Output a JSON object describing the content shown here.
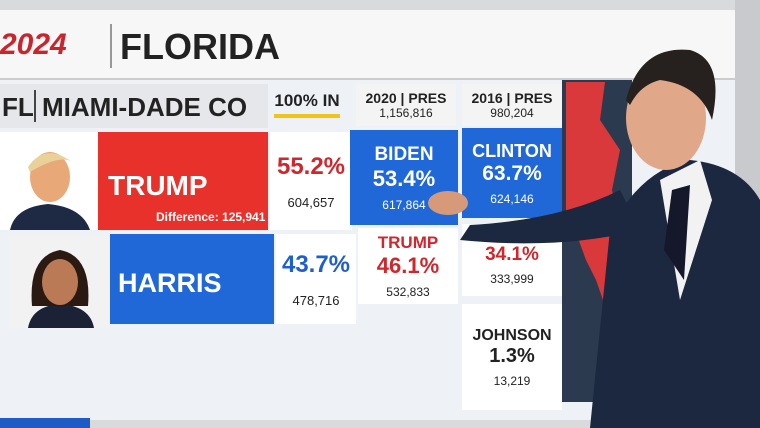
{
  "header": {
    "logo": "2024",
    "title": "FLORIDA"
  },
  "county": {
    "state": "FL",
    "name": "MIAMI-DADE CO",
    "reporting": "100% IN"
  },
  "current": {
    "candidates": [
      {
        "name": "TRUMP",
        "pct": "55.2%",
        "votes": "604,657",
        "difference": "Difference: 125,941"
      },
      {
        "name": "HARRIS",
        "pct": "43.7%",
        "votes": "478,716"
      }
    ]
  },
  "past": [
    {
      "label": "2020 | PRES",
      "total": "1,156,816",
      "results": [
        {
          "name": "BIDEN",
          "pct": "53.4%",
          "votes": "617,864"
        },
        {
          "name": "TRUMP",
          "pct": "46.1%",
          "votes": "532,833"
        }
      ]
    },
    {
      "label": "2016 | PRES",
      "total": "980,204",
      "results": [
        {
          "name": "CLINTON",
          "pct": "63.7%",
          "votes": "624,146"
        },
        {
          "pct": "34.1%",
          "votes": "333,999"
        },
        {
          "name": "JOHNSON",
          "pct": "1.3%",
          "votes": "13,219"
        }
      ]
    }
  ]
}
